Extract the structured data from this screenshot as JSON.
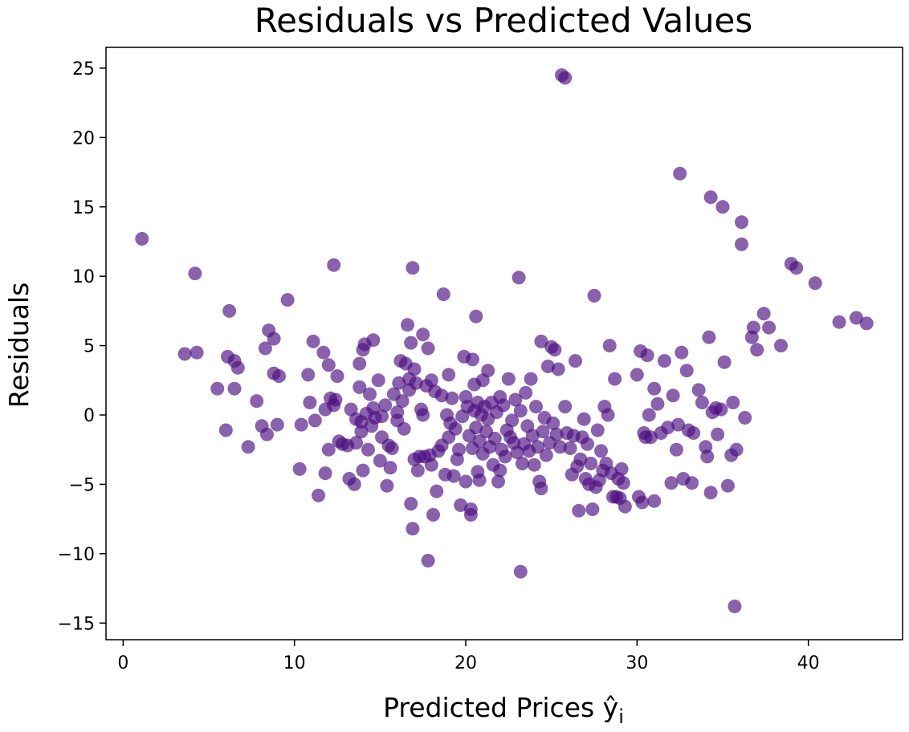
{
  "chart_data": {
    "type": "scatter",
    "title": "Residuals vs Predicted Values",
    "xlabel": "Predicted Prices ŷ",
    "xlabel_subscript": "i",
    "ylabel": "Residuals",
    "xlim": [
      -1,
      45.5
    ],
    "ylim": [
      -16.2,
      26.5
    ],
    "xticks": [
      0,
      10,
      20,
      30,
      40
    ],
    "yticks": [
      -15,
      -10,
      -5,
      0,
      5,
      10,
      15,
      20,
      25
    ],
    "ytick_labels": [
      "−15",
      "−10",
      "−5",
      "0",
      "5",
      "10",
      "15",
      "20",
      "25"
    ],
    "grid": false,
    "marker_color": "#4b0c7f",
    "marker_alpha": 0.65,
    "points": [
      [
        1.1,
        12.7
      ],
      [
        3.6,
        4.4
      ],
      [
        4.2,
        10.2
      ],
      [
        4.3,
        4.5
      ],
      [
        5.5,
        1.9
      ],
      [
        6.0,
        -1.1
      ],
      [
        6.1,
        4.2
      ],
      [
        6.2,
        7.5
      ],
      [
        6.5,
        3.9
      ],
      [
        6.5,
        1.9
      ],
      [
        6.7,
        3.4
      ],
      [
        7.3,
        -2.3
      ],
      [
        7.8,
        1.0
      ],
      [
        8.1,
        -0.8
      ],
      [
        8.3,
        4.8
      ],
      [
        8.4,
        -1.4
      ],
      [
        8.5,
        6.1
      ],
      [
        8.8,
        5.5
      ],
      [
        8.8,
        3.0
      ],
      [
        9.1,
        2.8
      ],
      [
        9.0,
        -0.7
      ],
      [
        9.6,
        8.3
      ],
      [
        10.3,
        -3.9
      ],
      [
        10.4,
        -0.7
      ],
      [
        10.8,
        2.9
      ],
      [
        10.9,
        0.9
      ],
      [
        11.1,
        5.3
      ],
      [
        11.2,
        -0.4
      ],
      [
        11.4,
        -5.8
      ],
      [
        11.7,
        4.5
      ],
      [
        11.8,
        0.4
      ],
      [
        11.8,
        -4.2
      ],
      [
        12.0,
        3.6
      ],
      [
        12.0,
        -2.5
      ],
      [
        12.1,
        1.2
      ],
      [
        12.3,
        10.8
      ],
      [
        12.3,
        0.7
      ],
      [
        12.4,
        1.1
      ],
      [
        12.5,
        2.8
      ],
      [
        12.6,
        -1.9
      ],
      [
        12.8,
        -2.1
      ],
      [
        13.1,
        -2.2
      ],
      [
        13.2,
        -4.6
      ],
      [
        13.3,
        0.4
      ],
      [
        13.5,
        -5.0
      ],
      [
        13.6,
        -0.3
      ],
      [
        13.6,
        -2.0
      ],
      [
        13.8,
        3.7
      ],
      [
        13.8,
        2.0
      ],
      [
        13.9,
        -0.5
      ],
      [
        13.9,
        -1.2
      ],
      [
        14.0,
        4.7
      ],
      [
        14.0,
        -4.0
      ],
      [
        14.1,
        5.1
      ],
      [
        14.2,
        0.1
      ],
      [
        14.3,
        -2.5
      ],
      [
        14.4,
        1.5
      ],
      [
        14.5,
        -0.8
      ],
      [
        14.6,
        5.4
      ],
      [
        14.6,
        0.5
      ],
      [
        14.7,
        -0.2
      ],
      [
        14.9,
        2.5
      ],
      [
        15.0,
        -3.3
      ],
      [
        15.1,
        -0.1
      ],
      [
        15.1,
        -1.6
      ],
      [
        15.3,
        0.7
      ],
      [
        15.4,
        -5.1
      ],
      [
        15.5,
        -2.2
      ],
      [
        15.6,
        -3.8
      ],
      [
        15.7,
        -2.4
      ],
      [
        15.8,
        1.5
      ],
      [
        16.0,
        -0.4
      ],
      [
        16.0,
        0.2
      ],
      [
        16.1,
        2.3
      ],
      [
        16.2,
        3.9
      ],
      [
        16.3,
        1.0
      ],
      [
        16.4,
        -1.0
      ],
      [
        16.5,
        3.7
      ],
      [
        16.6,
        6.5
      ],
      [
        16.7,
        2.6
      ],
      [
        16.7,
        1.8
      ],
      [
        16.8,
        -6.4
      ],
      [
        16.8,
        5.2
      ],
      [
        16.9,
        -8.2
      ],
      [
        16.9,
        10.6
      ],
      [
        17.0,
        3.3
      ],
      [
        17.0,
        -3.2
      ],
      [
        17.1,
        2.3
      ],
      [
        17.2,
        -4.0
      ],
      [
        17.3,
        -3.0
      ],
      [
        17.4,
        0.4
      ],
      [
        17.5,
        5.8
      ],
      [
        17.5,
        0.0
      ],
      [
        17.6,
        -3.0
      ],
      [
        17.7,
        2.1
      ],
      [
        17.8,
        -10.5
      ],
      [
        17.8,
        4.8
      ],
      [
        17.9,
        -2.9
      ],
      [
        18.0,
        -3.6
      ],
      [
        18.0,
        2.5
      ],
      [
        18.1,
        -7.2
      ],
      [
        18.2,
        1.7
      ],
      [
        18.3,
        -5.5
      ],
      [
        18.4,
        -2.6
      ],
      [
        18.6,
        1.4
      ],
      [
        18.6,
        -2.2
      ],
      [
        18.7,
        8.7
      ],
      [
        18.8,
        -4.3
      ],
      [
        18.9,
        0.0
      ],
      [
        19.0,
        2.9
      ],
      [
        19.0,
        -1.6
      ],
      [
        19.1,
        -0.6
      ],
      [
        19.2,
        1.2
      ],
      [
        19.3,
        -4.4
      ],
      [
        19.4,
        -1.0
      ],
      [
        19.5,
        -3.2
      ],
      [
        19.6,
        -2.5
      ],
      [
        19.7,
        -6.5
      ],
      [
        19.8,
        -0.1
      ],
      [
        19.9,
        4.2
      ],
      [
        20.0,
        1.3
      ],
      [
        20.0,
        -4.8
      ],
      [
        20.1,
        0.6
      ],
      [
        20.2,
        -1.5
      ],
      [
        20.3,
        -7.2
      ],
      [
        20.3,
        -6.8
      ],
      [
        20.4,
        4.0
      ],
      [
        20.4,
        -2.4
      ],
      [
        20.5,
        0.3
      ],
      [
        20.5,
        2.2
      ],
      [
        20.6,
        -0.9
      ],
      [
        20.6,
        7.1
      ],
      [
        20.7,
        0.9
      ],
      [
        20.7,
        -4.1
      ],
      [
        20.8,
        -1.9
      ],
      [
        20.8,
        -4.7
      ],
      [
        20.9,
        0.0
      ],
      [
        21.0,
        2.5
      ],
      [
        21.0,
        -2.8
      ],
      [
        21.1,
        0.6
      ],
      [
        21.2,
        -1.2
      ],
      [
        21.3,
        3.2
      ],
      [
        21.3,
        -0.3
      ],
      [
        21.4,
        -2.3
      ],
      [
        21.5,
        0.9
      ],
      [
        21.6,
        -3.6
      ],
      [
        21.7,
        -1.7
      ],
      [
        21.8,
        0.2
      ],
      [
        21.9,
        -4.8
      ],
      [
        22.0,
        -4.0
      ],
      [
        22.0,
        1.3
      ],
      [
        22.1,
        -2.5
      ],
      [
        22.2,
        0.7
      ],
      [
        22.3,
        -3.0
      ],
      [
        22.4,
        -1.1
      ],
      [
        22.5,
        2.6
      ],
      [
        22.6,
        -1.6
      ],
      [
        22.7,
        -0.4
      ],
      [
        22.8,
        -2.0
      ],
      [
        22.9,
        1.1
      ],
      [
        23.0,
        -2.7
      ],
      [
        23.1,
        9.9
      ],
      [
        23.2,
        -11.3
      ],
      [
        23.2,
        0.3
      ],
      [
        23.3,
        -3.5
      ],
      [
        23.4,
        -2.1
      ],
      [
        23.5,
        1.6
      ],
      [
        23.6,
        -0.8
      ],
      [
        23.7,
        -2.6
      ],
      [
        23.8,
        2.6
      ],
      [
        23.9,
        -1.5
      ],
      [
        24.0,
        -3.6
      ],
      [
        24.1,
        0.6
      ],
      [
        24.2,
        -2.3
      ],
      [
        24.3,
        -4.8
      ],
      [
        24.4,
        5.3
      ],
      [
        24.4,
        -5.3
      ],
      [
        24.5,
        -1.2
      ],
      [
        24.6,
        -0.2
      ],
      [
        24.7,
        -2.9
      ],
      [
        24.8,
        3.5
      ],
      [
        24.9,
        -2.0
      ],
      [
        25.0,
        4.9
      ],
      [
        25.1,
        -0.6
      ],
      [
        25.2,
        4.7
      ],
      [
        25.3,
        -1.4
      ],
      [
        25.4,
        3.3
      ],
      [
        25.5,
        -2.3
      ],
      [
        25.6,
        24.5
      ],
      [
        25.8,
        24.3
      ],
      [
        25.8,
        0.6
      ],
      [
        25.9,
        -1.3
      ],
      [
        26.1,
        -2.4
      ],
      [
        26.2,
        -4.3
      ],
      [
        26.3,
        -1.5
      ],
      [
        26.4,
        3.9
      ],
      [
        26.5,
        -3.7
      ],
      [
        26.6,
        -6.9
      ],
      [
        26.7,
        -3.2
      ],
      [
        26.8,
        -1.6
      ],
      [
        26.9,
        -0.3
      ],
      [
        27.0,
        -4.6
      ],
      [
        27.1,
        -2.1
      ],
      [
        27.2,
        -5.0
      ],
      [
        27.3,
        -3.5
      ],
      [
        27.4,
        -6.8
      ],
      [
        27.5,
        8.6
      ],
      [
        27.6,
        -5.2
      ],
      [
        27.7,
        -1.1
      ],
      [
        27.8,
        -4.7
      ],
      [
        27.9,
        -2.6
      ],
      [
        28.0,
        -4.0
      ],
      [
        28.1,
        0.6
      ],
      [
        28.2,
        -3.5
      ],
      [
        28.3,
        0.0
      ],
      [
        28.4,
        5.0
      ],
      [
        28.5,
        -4.2
      ],
      [
        28.6,
        -5.9
      ],
      [
        28.7,
        2.6
      ],
      [
        28.8,
        -5.9
      ],
      [
        28.9,
        -4.6
      ],
      [
        29.0,
        -6.0
      ],
      [
        29.1,
        -3.9
      ],
      [
        29.2,
        -4.9
      ],
      [
        29.3,
        -6.6
      ],
      [
        30.0,
        2.9
      ],
      [
        30.1,
        -5.9
      ],
      [
        30.2,
        4.6
      ],
      [
        30.3,
        -6.3
      ],
      [
        30.4,
        -1.3
      ],
      [
        30.5,
        -1.6
      ],
      [
        30.6,
        4.3
      ],
      [
        30.7,
        0.0
      ],
      [
        30.8,
        -1.6
      ],
      [
        31.0,
        1.9
      ],
      [
        31.0,
        -6.2
      ],
      [
        31.2,
        0.8
      ],
      [
        31.4,
        -1.3
      ],
      [
        31.6,
        3.9
      ],
      [
        31.8,
        -0.9
      ],
      [
        32.0,
        -4.9
      ],
      [
        32.1,
        1.4
      ],
      [
        32.3,
        -2.5
      ],
      [
        32.4,
        -0.7
      ],
      [
        32.5,
        17.4
      ],
      [
        32.6,
        4.5
      ],
      [
        32.7,
        -4.6
      ],
      [
        32.9,
        3.2
      ],
      [
        33.0,
        -1.1
      ],
      [
        33.2,
        -4.9
      ],
      [
        33.3,
        -1.3
      ],
      [
        33.6,
        1.8
      ],
      [
        33.8,
        0.9
      ],
      [
        34.0,
        -2.3
      ],
      [
        34.1,
        -3.0
      ],
      [
        34.2,
        5.6
      ],
      [
        34.3,
        -5.6
      ],
      [
        34.3,
        15.7
      ],
      [
        34.4,
        0.2
      ],
      [
        34.6,
        0.5
      ],
      [
        34.7,
        -1.4
      ],
      [
        34.9,
        0.4
      ],
      [
        35.0,
        15.0
      ],
      [
        35.1,
        3.8
      ],
      [
        35.3,
        -5.1
      ],
      [
        35.5,
        -2.9
      ],
      [
        35.6,
        0.9
      ],
      [
        35.7,
        -13.8
      ],
      [
        35.8,
        -2.5
      ],
      [
        36.1,
        13.9
      ],
      [
        36.1,
        12.3
      ],
      [
        36.3,
        -0.2
      ],
      [
        36.7,
        5.6
      ],
      [
        36.8,
        6.3
      ],
      [
        37.0,
        4.7
      ],
      [
        37.4,
        7.3
      ],
      [
        37.7,
        6.3
      ],
      [
        38.4,
        5.0
      ],
      [
        39.0,
        10.9
      ],
      [
        39.3,
        10.6
      ],
      [
        40.4,
        9.5
      ],
      [
        41.8,
        6.7
      ],
      [
        42.8,
        7.0
      ],
      [
        43.4,
        6.6
      ]
    ]
  }
}
